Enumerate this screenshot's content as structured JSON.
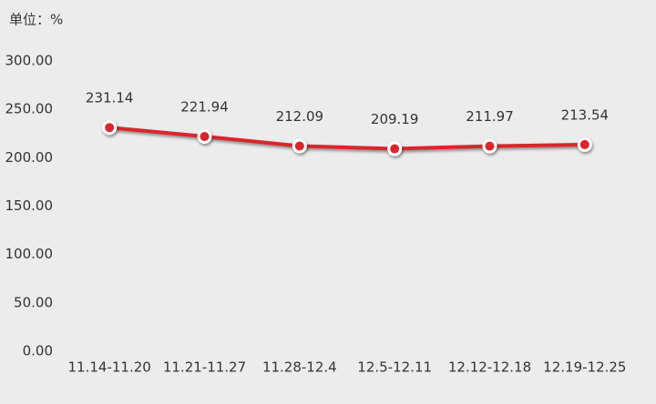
{
  "chart_data": {
    "type": "line",
    "y_label": "单位：%",
    "categories": [
      "11.14-11.20",
      "11.21-11.27",
      "11.28-12.4",
      "12.5-12.11",
      "12.12-12.18",
      "12.19-12.25"
    ],
    "series": [
      {
        "color": "#d9262c",
        "values": [
          231.14,
          221.94,
          212.09,
          209.19,
          211.97,
          213.54
        ]
      }
    ],
    "ylim": [
      0,
      300
    ],
    "yticks": [
      {
        "value": 0,
        "label": "0.00"
      },
      {
        "value": 50,
        "label": "50.00"
      },
      {
        "value": 100,
        "label": "100.00"
      },
      {
        "value": 150,
        "label": "150.00"
      },
      {
        "value": 200,
        "label": "200.00"
      },
      {
        "value": 250,
        "label": "250.00"
      },
      {
        "value": 300,
        "label": "300.00"
      }
    ],
    "grid": false
  }
}
